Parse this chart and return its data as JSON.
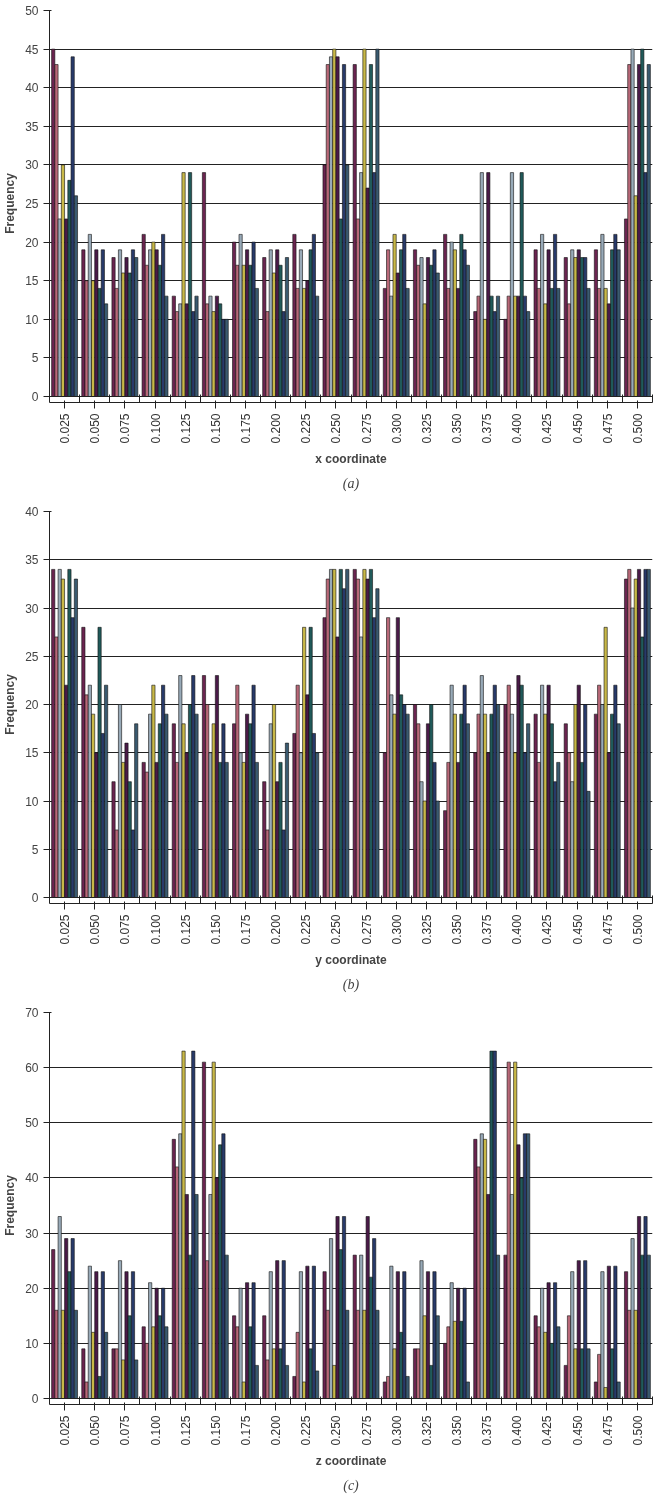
{
  "chart_data": [
    {
      "type": "bar",
      "xlabel": "x coordinate",
      "ylabel": "Frequency",
      "annotations": [
        "(a)"
      ],
      "grid": "y",
      "ylim": [
        0,
        50
      ],
      "yticks": [
        0,
        5,
        10,
        15,
        20,
        25,
        30,
        35,
        40,
        45,
        50
      ],
      "categories": [
        "0.025",
        "0.050",
        "0.075",
        "0.100",
        "0.125",
        "0.150",
        "0.175",
        "0.200",
        "0.225",
        "0.250",
        "0.275",
        "0.300",
        "0.325",
        "0.350",
        "0.375",
        "0.400",
        "0.425",
        "0.450",
        "0.475",
        "0.500"
      ],
      "series": [
        {
          "color": "#6b2450",
          "values": [
            45,
            19,
            18,
            21,
            13,
            29,
            20,
            18,
            21,
            30,
            43,
            14,
            19,
            21,
            11,
            10,
            19,
            18,
            19,
            23
          ]
        },
        {
          "color": "#b86878",
          "values": [
            43,
            15,
            14,
            17,
            11,
            12,
            17,
            11,
            14,
            43,
            23,
            19,
            17,
            14,
            13,
            13,
            14,
            12,
            14,
            43
          ]
        },
        {
          "color": "#98aab8",
          "values": [
            23,
            21,
            19,
            19,
            12,
            13,
            21,
            19,
            19,
            44,
            29,
            13,
            18,
            20,
            29,
            29,
            21,
            19,
            21,
            45
          ]
        },
        {
          "color": "#c8b848",
          "values": [
            30,
            15,
            16,
            20,
            29,
            11,
            17,
            16,
            14,
            45,
            45,
            21,
            12,
            19,
            10,
            13,
            12,
            18,
            14,
            26
          ]
        },
        {
          "color": "#4a1a48",
          "values": [
            23,
            19,
            18,
            19,
            12,
            13,
            19,
            19,
            15,
            44,
            27,
            16,
            18,
            14,
            29,
            13,
            19,
            19,
            12,
            43
          ]
        },
        {
          "color": "#205a5a",
          "values": [
            28,
            14,
            16,
            17,
            29,
            12,
            17,
            17,
            19,
            23,
            43,
            19,
            17,
            21,
            13,
            29,
            14,
            18,
            19,
            45
          ]
        },
        {
          "color": "#283a6a",
          "values": [
            44,
            19,
            19,
            21,
            11,
            10,
            20,
            11,
            21,
            43,
            29,
            21,
            19,
            19,
            11,
            13,
            21,
            18,
            21,
            29
          ]
        },
        {
          "color": "#3a5a70",
          "values": [
            26,
            12,
            18,
            13,
            13,
            10,
            14,
            18,
            13,
            30,
            45,
            14,
            16,
            17,
            13,
            11,
            14,
            14,
            19,
            43
          ]
        }
      ]
    },
    {
      "type": "bar",
      "xlabel": "y coordinate",
      "ylabel": "Frequency",
      "annotations": [
        "(b)"
      ],
      "grid": "y",
      "ylim": [
        0,
        40
      ],
      "yticks": [
        0,
        5,
        10,
        15,
        20,
        25,
        30,
        35,
        40
      ],
      "categories": [
        "0.025",
        "0.050",
        "0.075",
        "0.100",
        "0.125",
        "0.150",
        "0.175",
        "0.200",
        "0.225",
        "0.250",
        "0.275",
        "0.300",
        "0.325",
        "0.350",
        "0.375",
        "0.400",
        "0.425",
        "0.450",
        "0.475",
        "0.500"
      ],
      "series": [
        {
          "color": "#6b2450",
          "values": [
            34,
            28,
            12,
            14,
            18,
            23,
            18,
            12,
            17,
            29,
            34,
            15,
            20,
            9,
            15,
            20,
            19,
            18,
            19,
            33
          ]
        },
        {
          "color": "#b86878",
          "values": [
            27,
            21,
            7,
            13,
            14,
            20,
            22,
            7,
            22,
            33,
            33,
            29,
            18,
            14,
            19,
            22,
            14,
            15,
            22,
            34
          ]
        },
        {
          "color": "#98aab8",
          "values": [
            34,
            22,
            20,
            19,
            23,
            15,
            15,
            18,
            15,
            34,
            27,
            21,
            12,
            22,
            23,
            19,
            22,
            12,
            20,
            30
          ]
        },
        {
          "color": "#c8b848",
          "values": [
            33,
            19,
            14,
            22,
            18,
            18,
            14,
            20,
            28,
            34,
            34,
            19,
            10,
            19,
            19,
            15,
            19,
            20,
            28,
            33
          ]
        },
        {
          "color": "#4a1a48",
          "values": [
            22,
            15,
            16,
            14,
            15,
            23,
            19,
            12,
            21,
            27,
            33,
            29,
            18,
            14,
            15,
            23,
            22,
            22,
            15,
            34
          ]
        },
        {
          "color": "#205a5a",
          "values": [
            34,
            28,
            12,
            18,
            20,
            14,
            18,
            14,
            28,
            34,
            34,
            21,
            20,
            19,
            19,
            22,
            18,
            14,
            19,
            27
          ]
        },
        {
          "color": "#283a6a",
          "values": [
            29,
            17,
            7,
            22,
            23,
            18,
            22,
            7,
            17,
            32,
            29,
            20,
            14,
            22,
            22,
            15,
            12,
            20,
            22,
            34
          ]
        },
        {
          "color": "#3a5a70",
          "values": [
            33,
            22,
            18,
            19,
            19,
            14,
            14,
            16,
            15,
            34,
            32,
            19,
            10,
            18,
            20,
            18,
            14,
            11,
            18,
            34
          ]
        }
      ]
    },
    {
      "type": "bar",
      "xlabel": "z coordinate",
      "ylabel": "Frequency",
      "annotations": [
        "(c)"
      ],
      "grid": "y",
      "ylim": [
        0,
        70
      ],
      "yticks": [
        0,
        10,
        20,
        30,
        40,
        50,
        60,
        70
      ],
      "categories": [
        "0.025",
        "0.050",
        "0.075",
        "0.100",
        "0.125",
        "0.150",
        "0.175",
        "0.200",
        "0.225",
        "0.250",
        "0.275",
        "0.300",
        "0.325",
        "0.350",
        "0.375",
        "0.400",
        "0.425",
        "0.450",
        "0.475",
        "0.500"
      ],
      "series": [
        {
          "color": "#6b2450",
          "values": [
            27,
            9,
            9,
            13,
            47,
            61,
            15,
            15,
            4,
            23,
            26,
            3,
            9,
            10,
            47,
            26,
            15,
            6,
            3,
            23
          ]
        },
        {
          "color": "#b86878",
          "values": [
            16,
            3,
            9,
            10,
            42,
            25,
            13,
            7,
            12,
            16,
            16,
            4,
            9,
            13,
            42,
            61,
            13,
            15,
            8,
            16
          ]
        },
        {
          "color": "#98aab8",
          "values": [
            33,
            24,
            25,
            21,
            48,
            37,
            20,
            23,
            23,
            29,
            26,
            24,
            25,
            21,
            48,
            37,
            20,
            23,
            23,
            29
          ]
        },
        {
          "color": "#c8b848",
          "values": [
            16,
            12,
            7,
            13,
            63,
            61,
            3,
            9,
            3,
            6,
            16,
            9,
            15,
            14,
            47,
            61,
            12,
            9,
            2,
            16
          ]
        },
        {
          "color": "#4a1a48",
          "values": [
            29,
            23,
            23,
            20,
            37,
            40,
            21,
            25,
            24,
            33,
            33,
            23,
            23,
            20,
            37,
            46,
            21,
            25,
            24,
            33
          ]
        },
        {
          "color": "#205a5a",
          "values": [
            23,
            4,
            15,
            15,
            26,
            46,
            13,
            9,
            9,
            27,
            22,
            12,
            6,
            14,
            63,
            40,
            10,
            9,
            9,
            26
          ]
        },
        {
          "color": "#283a6a",
          "values": [
            29,
            23,
            23,
            20,
            63,
            48,
            21,
            25,
            24,
            33,
            29,
            23,
            23,
            20,
            63,
            48,
            21,
            25,
            24,
            33
          ]
        },
        {
          "color": "#3a5a70",
          "values": [
            16,
            12,
            7,
            13,
            37,
            26,
            6,
            6,
            5,
            16,
            16,
            4,
            15,
            3,
            26,
            48,
            13,
            9,
            3,
            26
          ]
        }
      ]
    }
  ]
}
